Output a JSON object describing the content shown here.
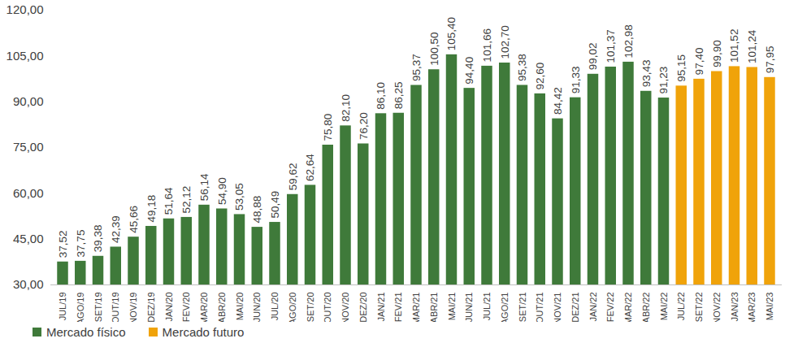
{
  "chart_data": {
    "type": "bar",
    "categories": [
      "JUL/19",
      "AGO/19",
      "SET/19",
      "OUT/19",
      "NOV/19",
      "DEZ/19",
      "JAN/20",
      "FEV/20",
      "MAR/20",
      "ABR/20",
      "MAI/20",
      "JUN/20",
      "JUL/20",
      "AGO/20",
      "SET/20",
      "OUT/20",
      "NOV/20",
      "DEZ/20",
      "JAN/21",
      "FEV/21",
      "MAR/21",
      "ABR/21",
      "MAI/21",
      "JUN/21",
      "JUL/21",
      "AGO/21",
      "SET/21",
      "OUT/21",
      "NOV/21",
      "DEZ/21",
      "JAN/22",
      "FEV/22",
      "MAR/22",
      "ABR/22",
      "MAI/22",
      "JUL/22",
      "SET/22",
      "NOV/22",
      "JAN/23",
      "MAR/23",
      "MAI/23"
    ],
    "series": [
      {
        "name": "Mercado físico",
        "color": "#3f7a3a",
        "values": [
          37.52,
          37.75,
          39.38,
          42.39,
          45.66,
          49.18,
          51.64,
          52.12,
          56.14,
          54.9,
          53.05,
          48.88,
          50.49,
          59.62,
          62.64,
          75.8,
          82.1,
          76.2,
          86.1,
          86.25,
          95.37,
          100.5,
          105.4,
          94.4,
          101.66,
          102.7,
          95.38,
          92.6,
          84.42,
          91.33,
          99.02,
          101.37,
          102.98,
          93.43,
          91.23,
          null,
          null,
          null,
          null,
          null,
          null
        ],
        "value_labels": [
          "37,52",
          "37,75",
          "39,38",
          "42,39",
          "45,66",
          "49,18",
          "51,64",
          "52,12",
          "56,14",
          "54,90",
          "53,05",
          "48,88",
          "50,49",
          "59,62",
          "62,64",
          "75,80",
          "82,10",
          "76,20",
          "86,10",
          "86,25",
          "95,37",
          "100,50",
          "105,40",
          "94,40",
          "101,66",
          "102,70",
          "95,38",
          "92,60",
          "84,42",
          "91,33",
          "99,02",
          "101,37",
          "102,98",
          "93,43",
          "91,23",
          null,
          null,
          null,
          null,
          null,
          null
        ]
      },
      {
        "name": "Mercado futuro",
        "color": "#f0a30a",
        "values": [
          null,
          null,
          null,
          null,
          null,
          null,
          null,
          null,
          null,
          null,
          null,
          null,
          null,
          null,
          null,
          null,
          null,
          null,
          null,
          null,
          null,
          null,
          null,
          null,
          null,
          null,
          null,
          null,
          null,
          null,
          null,
          null,
          null,
          null,
          null,
          95.15,
          97.4,
          99.9,
          101.52,
          101.24,
          97.95
        ],
        "value_labels": [
          null,
          null,
          null,
          null,
          null,
          null,
          null,
          null,
          null,
          null,
          null,
          null,
          null,
          null,
          null,
          null,
          null,
          null,
          null,
          null,
          null,
          null,
          null,
          null,
          null,
          null,
          null,
          null,
          null,
          null,
          null,
          null,
          null,
          null,
          null,
          "95,15",
          "97,40",
          "99,90",
          "101,52",
          "101,24",
          "97,95"
        ]
      }
    ],
    "ylim": [
      30,
      120
    ],
    "yticks": [
      {
        "value": 30,
        "label": "30,00"
      },
      {
        "value": 45,
        "label": "45,00"
      },
      {
        "value": 60,
        "label": "60,00"
      },
      {
        "value": 75,
        "label": "75,00"
      },
      {
        "value": 90,
        "label": "90,00"
      },
      {
        "value": 105,
        "label": "105,00"
      },
      {
        "value": 120,
        "label": "120,00"
      }
    ],
    "grid": false,
    "data_labels": true,
    "legend": "bottom"
  }
}
